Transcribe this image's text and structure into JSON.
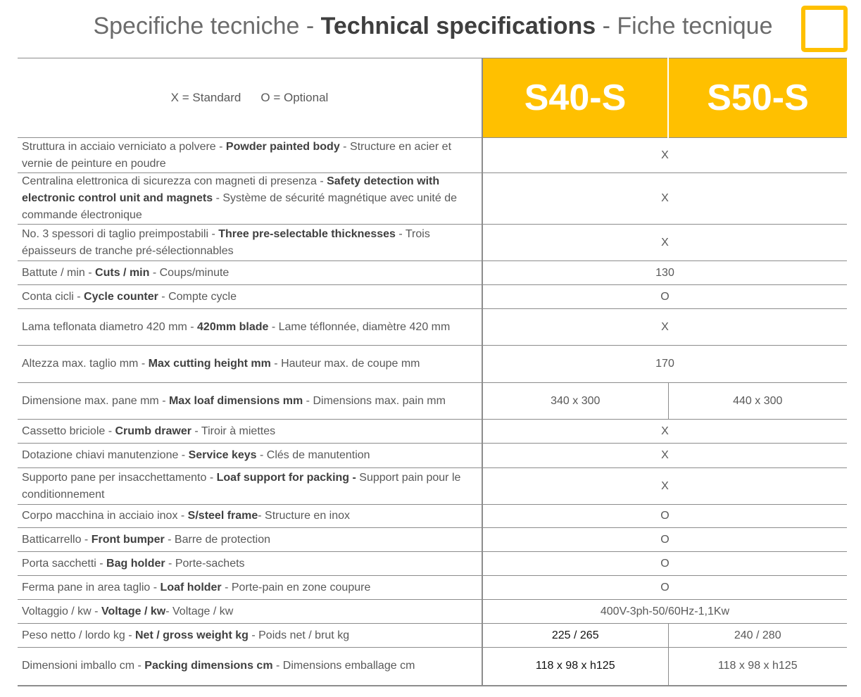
{
  "title": {
    "part1": "Specifiche tecniche - ",
    "part2": "Technical specifications",
    "part3": " - Fiche tecnique"
  },
  "legend": {
    "standard": "X = Standard",
    "optional": "O = Optional"
  },
  "models": [
    "S40-S",
    "S50-S"
  ],
  "colors": {
    "accent": "#ffc000",
    "text": "#595959",
    "border": "#8c8c8c"
  },
  "rows": [
    {
      "it": "Struttura in acciaio verniciato a polvere - ",
      "en": "Powder painted body",
      "fr": " - Structure en acier et vernie de peinture en poudre",
      "value": "X"
    },
    {
      "it": "Centralina elettronica di sicurezza con magneti di presenza - ",
      "en": "Safety detection with electronic control unit and magnets",
      "fr": " - Système de sécurité magnétique avec unité de commande électronique",
      "value": "X"
    },
    {
      "it": "No. 3 spessori di taglio preimpostabili - ",
      "en": "Three pre-selectable thicknesses",
      "fr": " - Trois épaisseurs de tranche pré-sélectionnables",
      "value": "X"
    },
    {
      "it": "Battute / min - ",
      "en": "Cuts / min",
      "fr": " - Coups/minute",
      "value": "130"
    },
    {
      "it": "Conta cicli - ",
      "en": "Cycle counter",
      "fr": " - Compte cycle",
      "value": "O"
    },
    {
      "it": "Lama teflonata diametro 420 mm - ",
      "en": "420mm blade",
      "fr": " - Lame téflonnée, diamètre 420 mm",
      "value": "X"
    },
    {
      "it": "Altezza max. taglio mm - ",
      "en": "Max cutting height mm",
      "fr": " - Hauteur max. de coupe mm",
      "value": "170"
    },
    {
      "it": "Dimensione max. pane mm - ",
      "en": "Max loaf dimensions mm",
      "fr": " - Dimensions max. pain mm",
      "s40": "340 x 300",
      "s50": "440 x 300"
    },
    {
      "it": "Cassetto briciole - ",
      "en": "Crumb drawer",
      "fr": " - Tiroir à miettes",
      "value": "X"
    },
    {
      "it": "Dotazione chiavi manutenzione - ",
      "en": "Service keys",
      "fr": " - Clés de manutention",
      "value": "X"
    },
    {
      "it": "Supporto pane per insacchettamento - ",
      "en": "Loaf support for packing -",
      "fr": " Support pain pour le conditionnement",
      "value": "X"
    },
    {
      "it": "Corpo macchina in acciaio inox - ",
      "en": "S/steel frame",
      "fr": "- Structure en inox",
      "value": "O"
    },
    {
      "it": "Batticarrello - ",
      "en": "Front bumper",
      "fr": " - Barre de protection",
      "value": "O"
    },
    {
      "it": "Porta sacchetti - ",
      "en": "Bag holder",
      "fr": " - Porte-sachets",
      "value": "O"
    },
    {
      "it": "Ferma pane in area taglio - ",
      "en": "Loaf holder",
      "fr": " - Porte-pain en zone coupure",
      "value": "O"
    },
    {
      "it": "Voltaggio / kw - ",
      "en": "Voltage / kw",
      "fr": "- Voltage / kw",
      "value": "400V-3ph-50/60Hz-1,1Kw"
    },
    {
      "it": "Peso netto / lordo kg - ",
      "en": "Net / gross weight kg",
      "fr": " - Poids net / brut kg",
      "s40": "225 / 265",
      "s50": "240 / 280"
    },
    {
      "it": "Dimensioni imballo cm - ",
      "en": "Packing dimensions cm",
      "fr": " - Dimensions emballage  cm",
      "s40": "118 x 98 x h125",
      "s50": "118 x 98 x h125"
    }
  ]
}
